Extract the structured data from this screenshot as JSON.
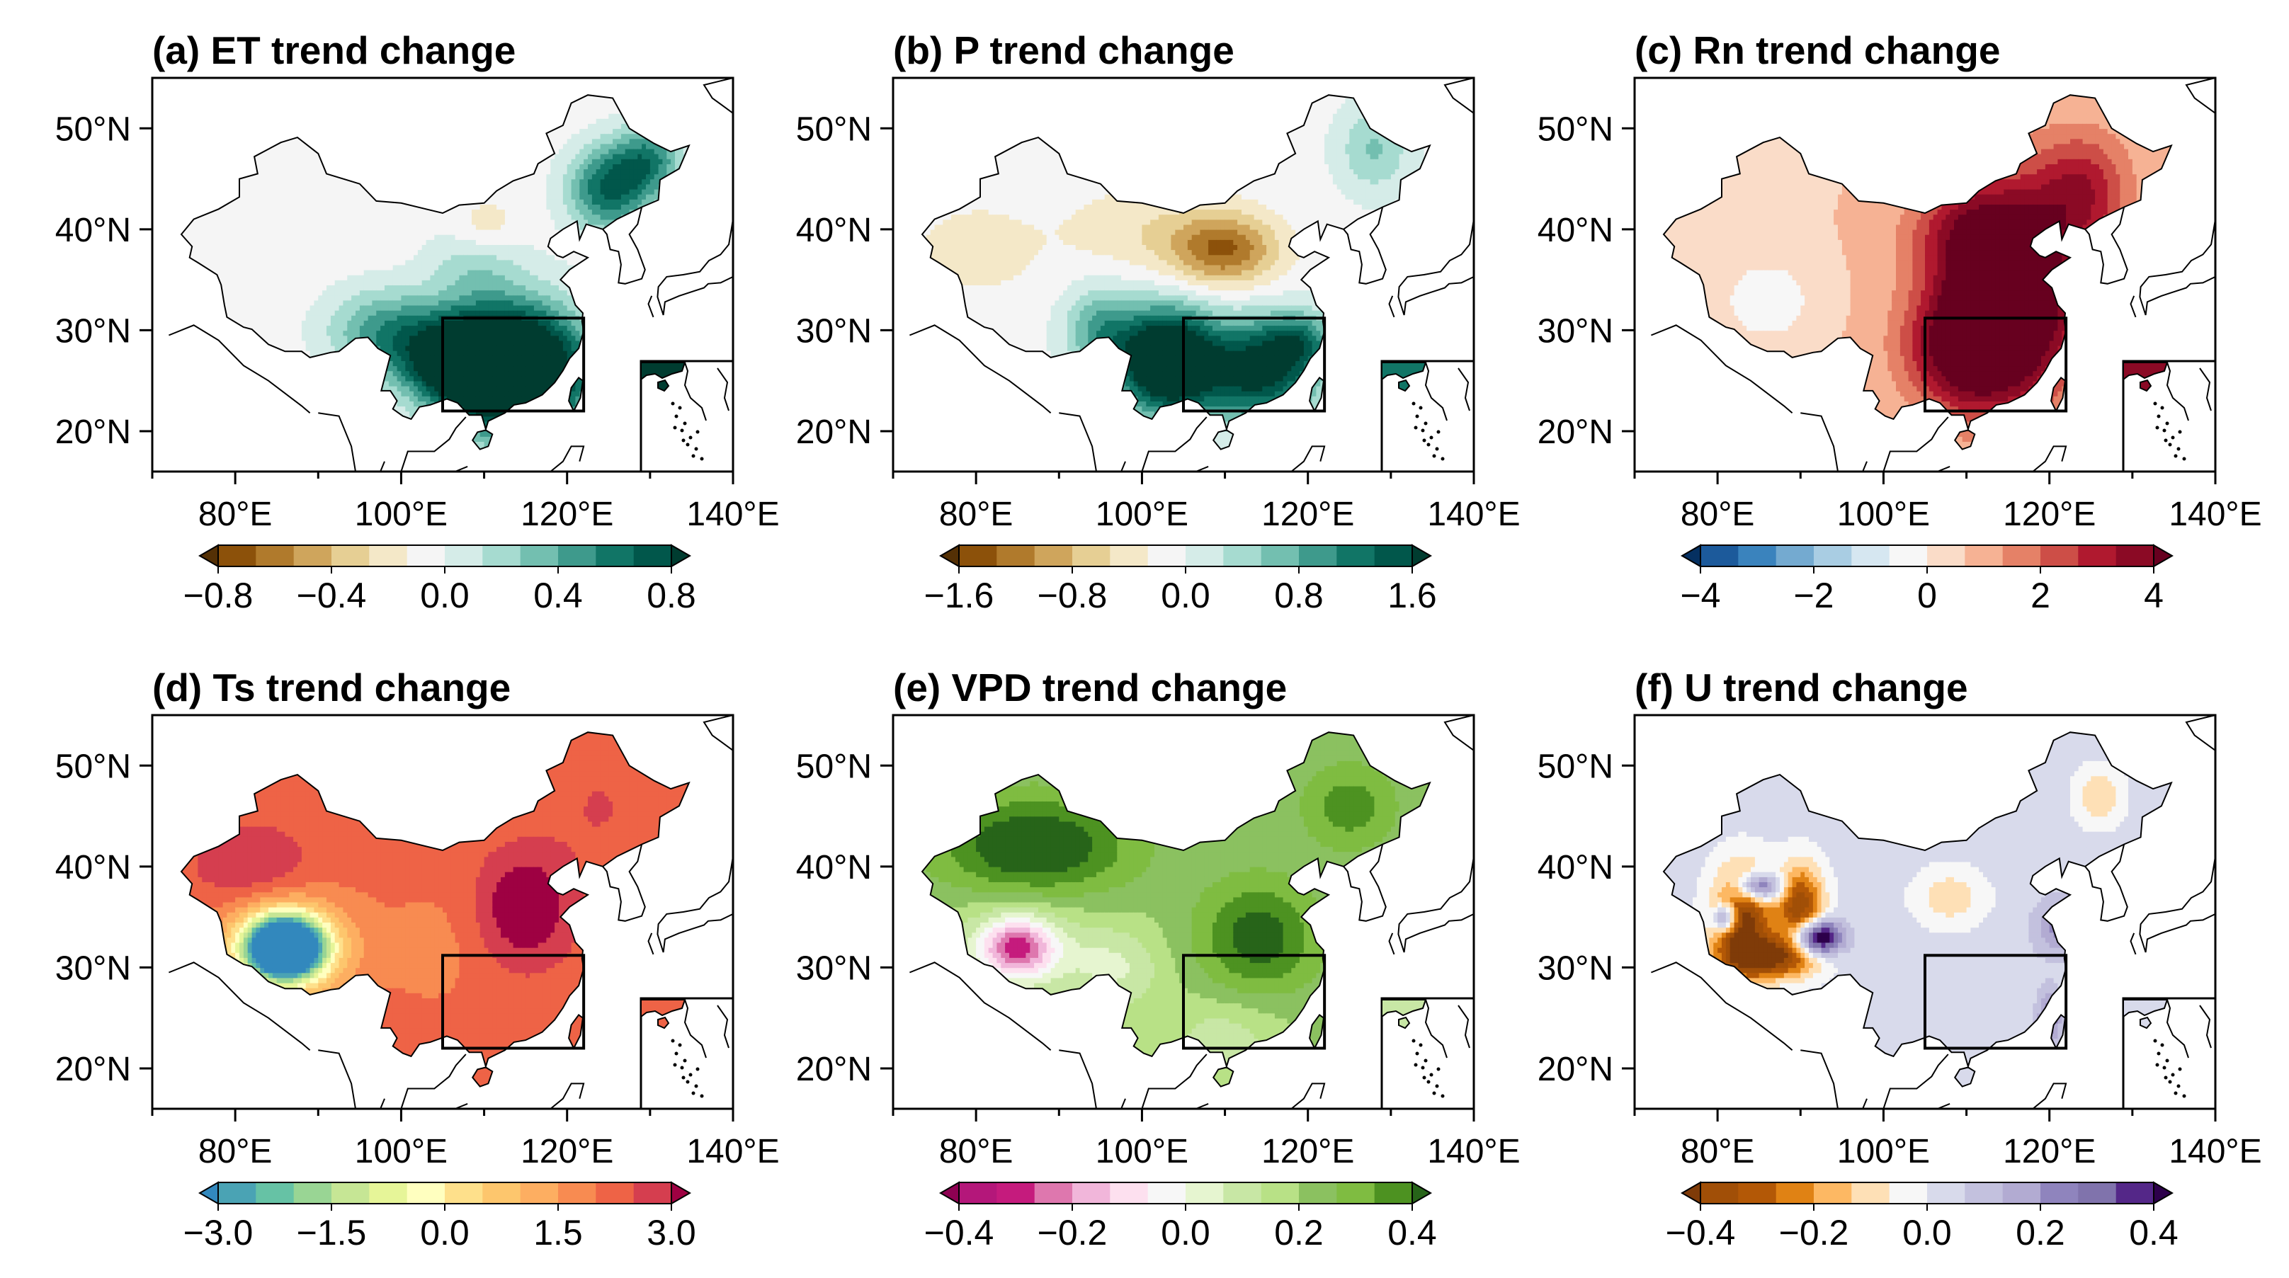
{
  "panels": [
    {
      "title": "(a) ET trend change",
      "colormap": "brbg",
      "colorbar_ticks": [
        "−0.8",
        "−0.4",
        "0.0",
        "0.4",
        "0.8"
      ],
      "field": "et"
    },
    {
      "title": "(b) P trend change",
      "colormap": "brbg",
      "colorbar_ticks": [
        "−1.6",
        "−0.8",
        "0.0",
        "0.8",
        "1.6"
      ],
      "field": "p"
    },
    {
      "title": "(c) Rn trend change",
      "colormap": "rdbu",
      "colorbar_ticks": [
        "−4",
        "−2",
        "0",
        "2",
        "4"
      ],
      "field": "rn"
    },
    {
      "title": "(d) Ts trend change",
      "colormap": "spectral",
      "colorbar_ticks": [
        "−3.0",
        "−1.5",
        "0.0",
        "1.5",
        "3.0"
      ],
      "field": "ts"
    },
    {
      "title": "(e) VPD trend change",
      "colormap": "piyg",
      "colorbar_ticks": [
        "−0.4",
        "−0.2",
        "0.0",
        "0.2",
        "0.4"
      ],
      "field": "vpd"
    },
    {
      "title": "(f) U trend change",
      "colormap": "puor",
      "colorbar_ticks": [
        "−0.4",
        "−0.2",
        "0.0",
        "0.2",
        "0.4"
      ],
      "field": "u"
    }
  ],
  "lat_labels": [
    "50°N",
    "40°N",
    "30°N",
    "20°N"
  ],
  "lon_labels": [
    "80°E",
    "100°E",
    "120°E",
    "140°E"
  ],
  "colormaps": {
    "brbg": [
      "#543005",
      "#8c510a",
      "#b07a2c",
      "#cfa55c",
      "#e6cf94",
      "#f4e8c8",
      "#f5f5f5",
      "#d5ece8",
      "#a6dbd0",
      "#73bfb0",
      "#3e9a8c",
      "#117566",
      "#01574b",
      "#003c30"
    ],
    "rdbu": [
      "#053061",
      "#1c5a9b",
      "#3a83bd",
      "#74aad0",
      "#a9cde3",
      "#d6e7f1",
      "#f7f7f7",
      "#fadcc8",
      "#f6b294",
      "#e58167",
      "#cd4e47",
      "#b0192f",
      "#8b0a25",
      "#67001f"
    ],
    "spectral": [
      "#3288bd",
      "#4aa3b4",
      "#66c2a5",
      "#99d594",
      "#c6e695",
      "#e6f598",
      "#ffffbf",
      "#fee08b",
      "#fdc66d",
      "#fdae61",
      "#f88b51",
      "#ee6346",
      "#d53e4f",
      "#9e0142"
    ],
    "piyg": [
      "#8e0152",
      "#b4177a",
      "#c51b7d",
      "#de77ae",
      "#f1b6da",
      "#fde0ef",
      "#f7f7f7",
      "#e6f5d0",
      "#c8e7a5",
      "#b8e186",
      "#8bc160",
      "#7fbc41",
      "#4d9221",
      "#276419"
    ],
    "puor": [
      "#7f3b08",
      "#a14f07",
      "#b35806",
      "#e08214",
      "#fdb863",
      "#fee0b6",
      "#f7f7f7",
      "#d8daeb",
      "#c3c1de",
      "#b2abd2",
      "#8f84bd",
      "#8073ac",
      "#542788",
      "#2d004b"
    ]
  }
}
